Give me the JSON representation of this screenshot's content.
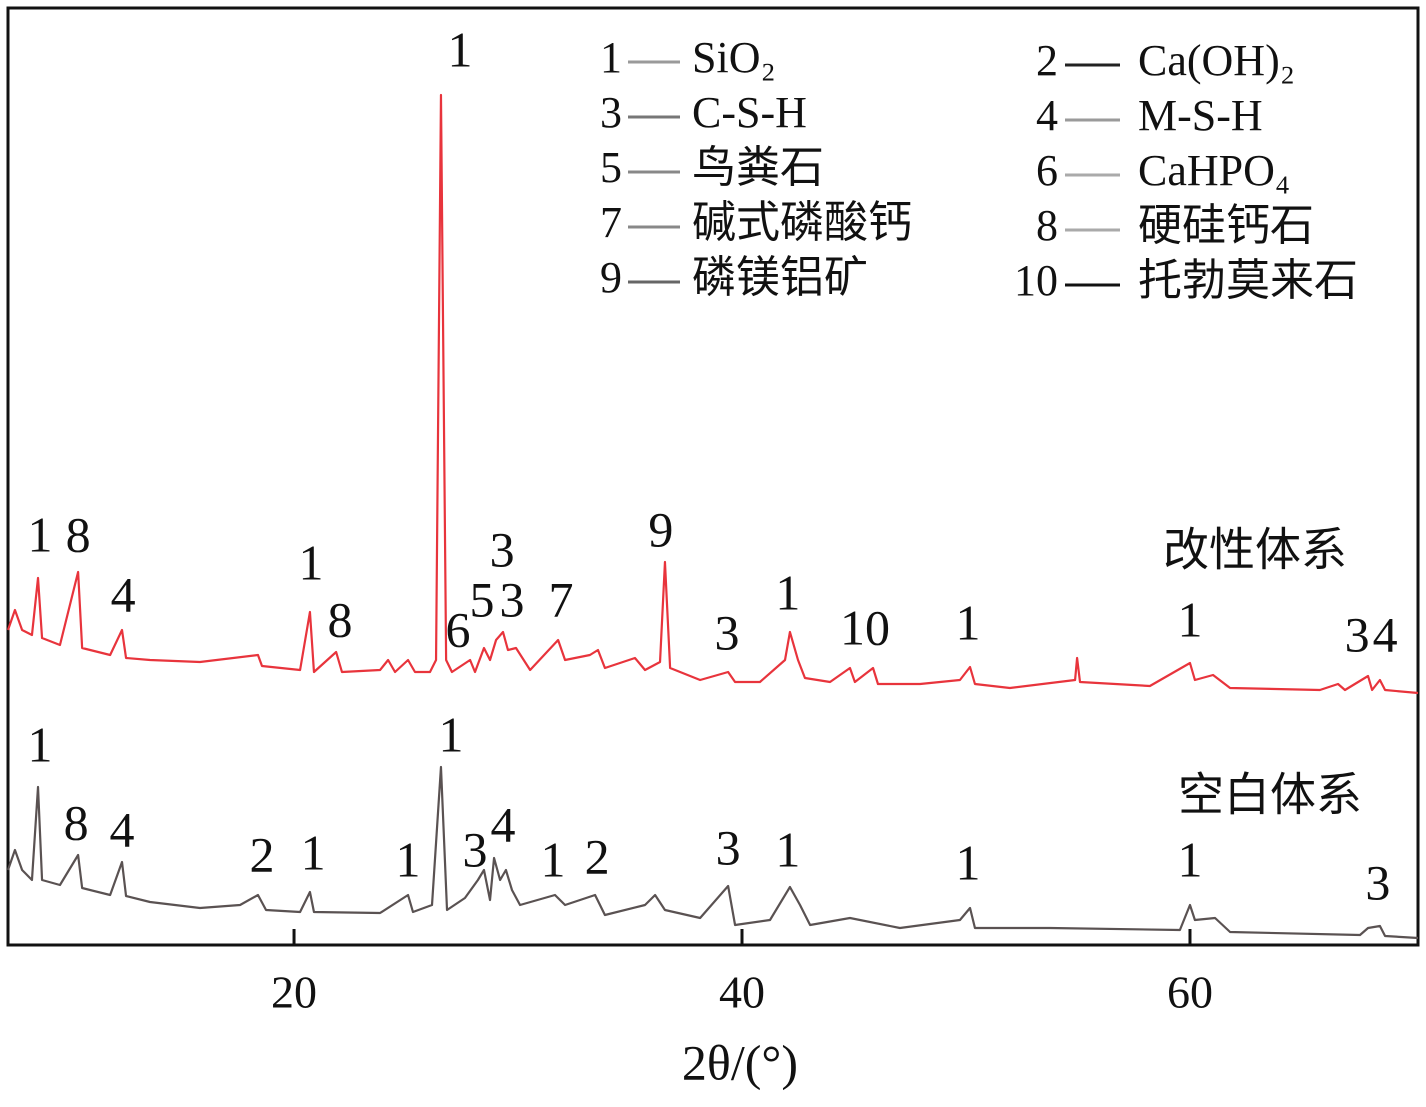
{
  "chart_data": {
    "type": "line",
    "x_label": "2θ/(°)",
    "xlim": [
      7.23,
      70.18
    ],
    "ylim": [
      0,
      937
    ],
    "xticks": [
      20,
      40,
      60
    ],
    "legend": [
      {
        "label": "1",
        "name": "SiO₂",
        "color": "#9a9a9a"
      },
      {
        "label": "2",
        "name": "Ca(OH)₂",
        "color": "#222222"
      },
      {
        "label": "3",
        "name": "C-S-H",
        "color": "#777777"
      },
      {
        "label": "4",
        "name": "M-S-H",
        "color": "#9a9a9a"
      },
      {
        "label": "5",
        "name": "鸟粪石",
        "color": "#888888"
      },
      {
        "label": "6",
        "name": "CaHPO₄",
        "color": "#aaaaaa"
      },
      {
        "label": "7",
        "name": "碱式磷酸钙",
        "color": "#888888"
      },
      {
        "label": "8",
        "name": "硬硅钙石",
        "color": "#aaaaaa"
      },
      {
        "label": "9",
        "name": "磷镁铝矿",
        "color": "#666666"
      },
      {
        "label": "10",
        "name": "托勃莫来石",
        "color": "#111111"
      }
    ],
    "series": [
      {
        "name": "改性体系",
        "color": "#e8343c",
        "x": [
          7.23,
          7.54,
          7.86,
          8.3,
          8.57,
          8.75,
          9.55,
          10.36,
          10.54,
          11.79,
          12.32,
          12.5,
          13.57,
          15.8,
          18.39,
          18.57,
          20.27,
          20.71,
          20.89,
          21.88,
          22.14,
          23.84,
          24.2,
          24.51,
          25.09,
          25.4,
          26.07,
          26.34,
          26.56,
          26.79,
          27.05,
          27.86,
          28.08,
          28.48,
          28.75,
          29.02,
          29.33,
          29.55,
          29.91,
          30.54,
          31.79,
          32.1,
          33.21,
          33.57,
          33.88,
          35.22,
          35.67,
          36.34,
          36.56,
          36.79,
          38.13,
          39.38,
          39.69,
          40.8,
          41.92,
          42.14,
          42.5,
          42.81,
          43.93,
          44.82,
          45.04,
          45.85,
          46.07,
          47.95,
          49.73,
          50.18,
          50.4,
          51.96,
          54.87,
          54.96,
          55.09,
          58.21,
          60.0,
          60.22,
          61.03,
          61.79,
          65.8,
          66.61,
          66.92,
          67.95,
          68.13,
          68.48,
          68.71,
          70.18
        ],
        "values": [
          315,
          335,
          315,
          310,
          367,
          307,
          300,
          373,
          297,
          290,
          315,
          287,
          285,
          283,
          290,
          279,
          275,
          333,
          273,
          293,
          273,
          275,
          285,
          273,
          285,
          273,
          273,
          285,
          850,
          285,
          273,
          285,
          273,
          297,
          285,
          305,
          313,
          295,
          297,
          275,
          305,
          285,
          290,
          295,
          277,
          287,
          275,
          283,
          383,
          277,
          265,
          273,
          263,
          263,
          285,
          313,
          285,
          267,
          263,
          277,
          263,
          277,
          261,
          261,
          265,
          278,
          261,
          257,
          265,
          287,
          263,
          259,
          282,
          265,
          270,
          257,
          255,
          261,
          255,
          269,
          255,
          265,
          255,
          252
        ],
        "annotations": [
          {
            "text": "1",
            "x": 8.66,
            "y": 405
          },
          {
            "text": "8",
            "x": 10.36,
            "y": 405
          },
          {
            "text": "4",
            "x": 12.37,
            "y": 345
          },
          {
            "text": "1",
            "x": 20.76,
            "y": 377
          },
          {
            "text": "8",
            "x": 22.05,
            "y": 320
          },
          {
            "text": "1",
            "x": 27.41,
            "y": 890
          },
          {
            "text": "6",
            "x": 27.32,
            "y": 310
          },
          {
            "text": "5",
            "x": 28.39,
            "y": 340
          },
          {
            "text": "3",
            "x": 29.29,
            "y": 390
          },
          {
            "text": "3",
            "x": 29.73,
            "y": 340
          },
          {
            "text": "7",
            "x": 31.92,
            "y": 340
          },
          {
            "text": "9",
            "x": 36.38,
            "y": 410
          },
          {
            "text": "3",
            "x": 39.33,
            "y": 307
          },
          {
            "text": "1",
            "x": 42.05,
            "y": 347
          },
          {
            "text": "10",
            "x": 45.49,
            "y": 312
          },
          {
            "text": "1",
            "x": 50.09,
            "y": 317
          },
          {
            "text": "1",
            "x": 60.0,
            "y": 320
          },
          {
            "text": "3",
            "x": 67.46,
            "y": 305
          },
          {
            "text": "4",
            "x": 68.71,
            "y": 305
          }
        ]
      },
      {
        "name": "空白体系",
        "color": "#5a5252",
        "x": [
          7.23,
          7.54,
          7.86,
          8.3,
          8.57,
          8.75,
          9.55,
          10.36,
          10.54,
          11.79,
          12.32,
          12.5,
          13.57,
          15.8,
          17.59,
          18.39,
          18.75,
          20.27,
          20.71,
          20.89,
          23.84,
          25.09,
          25.31,
          26.16,
          26.56,
          26.83,
          27.63,
          28.21,
          28.48,
          28.75,
          28.93,
          29.2,
          29.46,
          29.73,
          30.09,
          31.65,
          32.1,
          33.44,
          33.88,
          35.67,
          36.12,
          36.56,
          38.13,
          39.38,
          39.69,
          41.25,
          42.14,
          42.59,
          43.04,
          44.82,
          47.05,
          49.73,
          50.18,
          50.4,
          53.75,
          59.55,
          60.0,
          60.22,
          61.12,
          61.79,
          67.59,
          67.95,
          68.48,
          68.71,
          70.18
        ],
        "values": [
          75,
          95,
          75,
          65,
          158,
          65,
          60,
          90,
          57,
          50,
          83,
          49,
          43,
          37,
          40,
          50,
          35,
          33,
          53,
          33,
          32,
          50,
          33,
          40,
          178,
          35,
          47,
          65,
          75,
          45,
          87,
          65,
          75,
          55,
          40,
          50,
          40,
          50,
          30,
          40,
          50,
          35,
          27,
          59,
          20,
          25,
          58,
          40,
          20,
          27,
          17,
          25,
          37,
          17,
          17,
          15,
          40,
          25,
          27,
          13,
          10,
          17,
          19,
          9,
          7
        ],
        "annotations": [
          {
            "text": "1",
            "x": 8.66,
            "y": 195
          },
          {
            "text": "8",
            "x": 10.27,
            "y": 117
          },
          {
            "text": "4",
            "x": 12.32,
            "y": 110
          },
          {
            "text": "2",
            "x": 18.57,
            "y": 85
          },
          {
            "text": "1",
            "x": 20.85,
            "y": 87
          },
          {
            "text": "1",
            "x": 25.09,
            "y": 80
          },
          {
            "text": "1",
            "x": 27.01,
            "y": 205
          },
          {
            "text": "3",
            "x": 28.08,
            "y": 90
          },
          {
            "text": "4",
            "x": 29.33,
            "y": 115
          },
          {
            "text": "1",
            "x": 31.56,
            "y": 80
          },
          {
            "text": "2",
            "x": 33.53,
            "y": 83
          },
          {
            "text": "3",
            "x": 39.38,
            "y": 92
          },
          {
            "text": "1",
            "x": 42.05,
            "y": 90
          },
          {
            "text": "1",
            "x": 50.09,
            "y": 77
          },
          {
            "text": "1",
            "x": 60.0,
            "y": 80
          },
          {
            "text": "3",
            "x": 68.39,
            "y": 57
          }
        ]
      }
    ]
  }
}
